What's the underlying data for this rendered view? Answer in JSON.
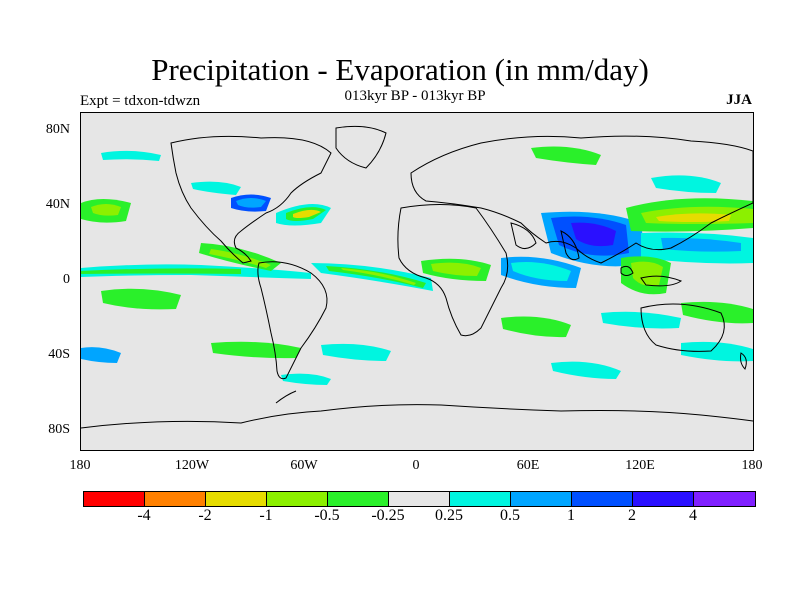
{
  "title": "Precipitation - Evaporation (in mm/day)",
  "subtitle": "013kyr BP - 013kyr BP",
  "expt_label": "Expt = tdxon-tdwzn",
  "season": "JJA",
  "y_ticks": [
    "80N",
    "40N",
    "0",
    "40S",
    "80S"
  ],
  "x_ticks": [
    "180",
    "120W",
    "60W",
    "0",
    "60E",
    "120E",
    "180"
  ],
  "colorbar": {
    "colors": [
      "#ff0000",
      "#ff8000",
      "#e6dc00",
      "#8cf000",
      "#2af02a",
      "#e6e6e6",
      "#00f5e0",
      "#00a5ff",
      "#0050ff",
      "#2a10ff",
      "#8020ff"
    ],
    "labels": [
      "-4",
      "-2",
      "-1",
      "-0.5",
      "-0.25",
      "0.25",
      "0.5",
      "1",
      "2",
      "4"
    ]
  },
  "colors": {
    "land_outline": "#000000",
    "ocean_background": "#e6e6e6"
  }
}
